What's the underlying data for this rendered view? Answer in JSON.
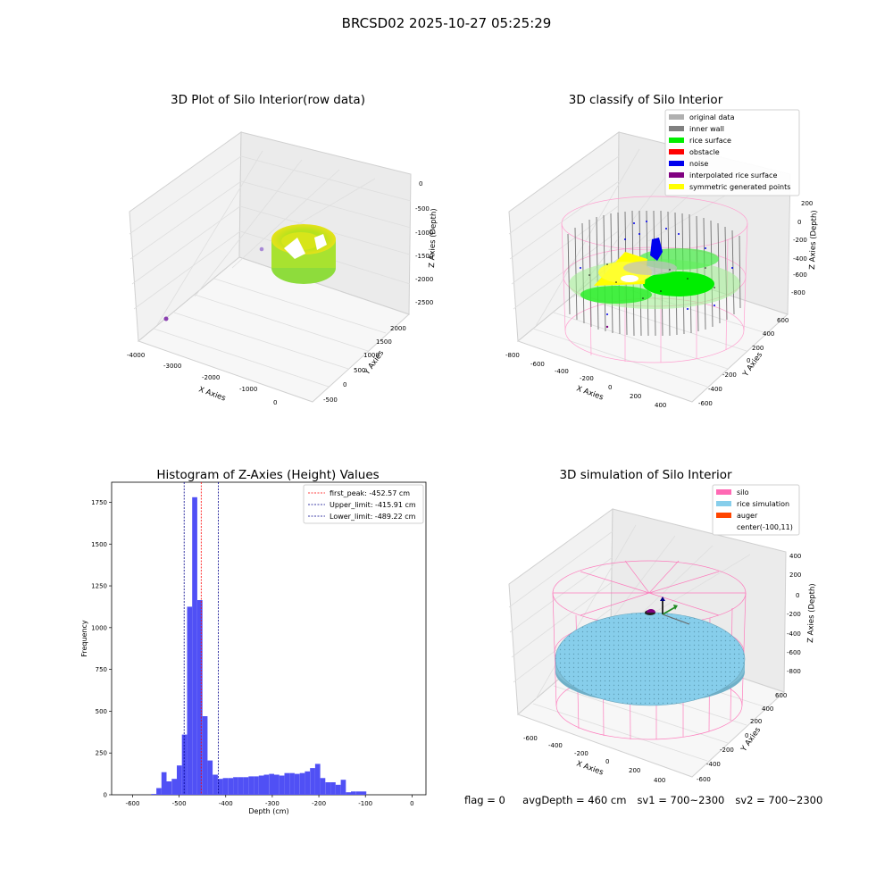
{
  "figure": {
    "suptitle": "BRCSD02 2025-10-27 05:25:29",
    "footer": {
      "flag": "flag = 0",
      "avg_depth": "avgDepth = 460 cm",
      "sv1": "sv1 = 700~2300",
      "sv2": "sv2 = 700~2300"
    }
  },
  "colors": {
    "histogram": "#5050f5",
    "first_peak": "#ff0000",
    "limit": "#00008b",
    "silo": "#ff69b4",
    "rice_simulation": "#87ceeb",
    "auger": "#ff4500",
    "original_data": "#b0b0b0",
    "inner_wall": "#808080",
    "rice_surface": "#00ee00",
    "obstacle": "#ff0000",
    "noise": "#0000ee",
    "interpolated": "#800080",
    "symmetric": "#ffff00"
  },
  "chart_data": [
    {
      "id": "raw",
      "type": "scatter",
      "title": "3D Plot of Silo Interior(row data)",
      "xlabel": "X Axies",
      "ylabel": "Y Axies",
      "zlabel": "Z Axies (Depth)",
      "xlim": [
        -4000,
        700
      ],
      "ylim": [
        -500,
        2200
      ],
      "zlim": [
        -2700,
        0
      ],
      "x_ticks": [
        "-4000",
        "-3000",
        "-2000",
        "-1000",
        "0"
      ],
      "y_ticks": [
        "-500",
        "0",
        "500",
        "1000",
        "1500",
        "2000"
      ],
      "z_ticks": [
        "0",
        "-500",
        "-1000",
        "-1500",
        "-2000",
        "-2500"
      ]
    },
    {
      "id": "classify",
      "type": "scatter",
      "title": "3D classify of Silo Interior",
      "xlabel": "X Axies",
      "ylabel": "Y Axies",
      "zlabel": "Z Axies (Depth)",
      "xlim": [
        -850,
        500
      ],
      "ylim": [
        -650,
        700
      ],
      "zlim": [
        -950,
        300
      ],
      "x_ticks": [
        "-800",
        "-600",
        "-400",
        "-200",
        "0",
        "200",
        "400"
      ],
      "y_ticks": [
        "-600",
        "-400",
        "-200",
        "0",
        "200",
        "400",
        "600"
      ],
      "z_ticks": [
        "200",
        "0",
        "-200",
        "-400",
        "-600",
        "-800"
      ],
      "legend": [
        "original data",
        "inner wall",
        "rice surface",
        "obstacle",
        "noise",
        "interpolated rice surface",
        "symmetric generated points"
      ],
      "legend_position": "top-right"
    },
    {
      "id": "histogram",
      "type": "bar",
      "title": "Histogram of Z-Axies (Height) Values",
      "xlabel": "Depth (cm)",
      "ylabel": "Frequency",
      "xlim": [
        -645,
        30
      ],
      "ylim": [
        0,
        1870
      ],
      "x_ticks": [
        "-600",
        "-500",
        "-400",
        "-300",
        "-200",
        "-100",
        "0"
      ],
      "y_ticks": [
        "0",
        "250",
        "500",
        "750",
        "1000",
        "1250",
        "1500",
        "1750"
      ],
      "bin_width": 11,
      "bin_start": -560,
      "values": [
        5,
        40,
        135,
        80,
        95,
        175,
        360,
        1125,
        1780,
        1165,
        470,
        205,
        120,
        95,
        100,
        100,
        105,
        105,
        105,
        110,
        110,
        115,
        120,
        125,
        120,
        115,
        130,
        130,
        125,
        130,
        140,
        160,
        185,
        100,
        75,
        75,
        60,
        90,
        15,
        20,
        20,
        20
      ],
      "lines": [
        {
          "label": "first_peak: -452.57 cm",
          "x": -452.57,
          "style": "first_peak"
        },
        {
          "label": "Upper_limit: -415.91 cm",
          "x": -415.91,
          "style": "limit"
        },
        {
          "label": "Lower_limit: -489.22 cm",
          "x": -489.22,
          "style": "limit"
        }
      ],
      "legend_position": "top-right"
    },
    {
      "id": "simulation",
      "type": "surface",
      "title": "3D simulation of Silo Interior",
      "xlabel": "X Axies",
      "ylabel": "Y Axies",
      "zlabel": "Z Axies (Depth)",
      "xlim": [
        -700,
        550
      ],
      "ylim": [
        -650,
        700
      ],
      "zlim": [
        -950,
        450
      ],
      "x_ticks": [
        "-600",
        "-400",
        "-200",
        "0",
        "200",
        "400"
      ],
      "y_ticks": [
        "-600",
        "-400",
        "-200",
        "0",
        "200",
        "400",
        "600"
      ],
      "z_ticks": [
        "400",
        "200",
        "0",
        "-200",
        "-400",
        "-600",
        "-800"
      ],
      "legend": [
        "silo",
        "rice simulation",
        "auger",
        "center(-100,11)"
      ],
      "legend_position": "top-right"
    }
  ]
}
